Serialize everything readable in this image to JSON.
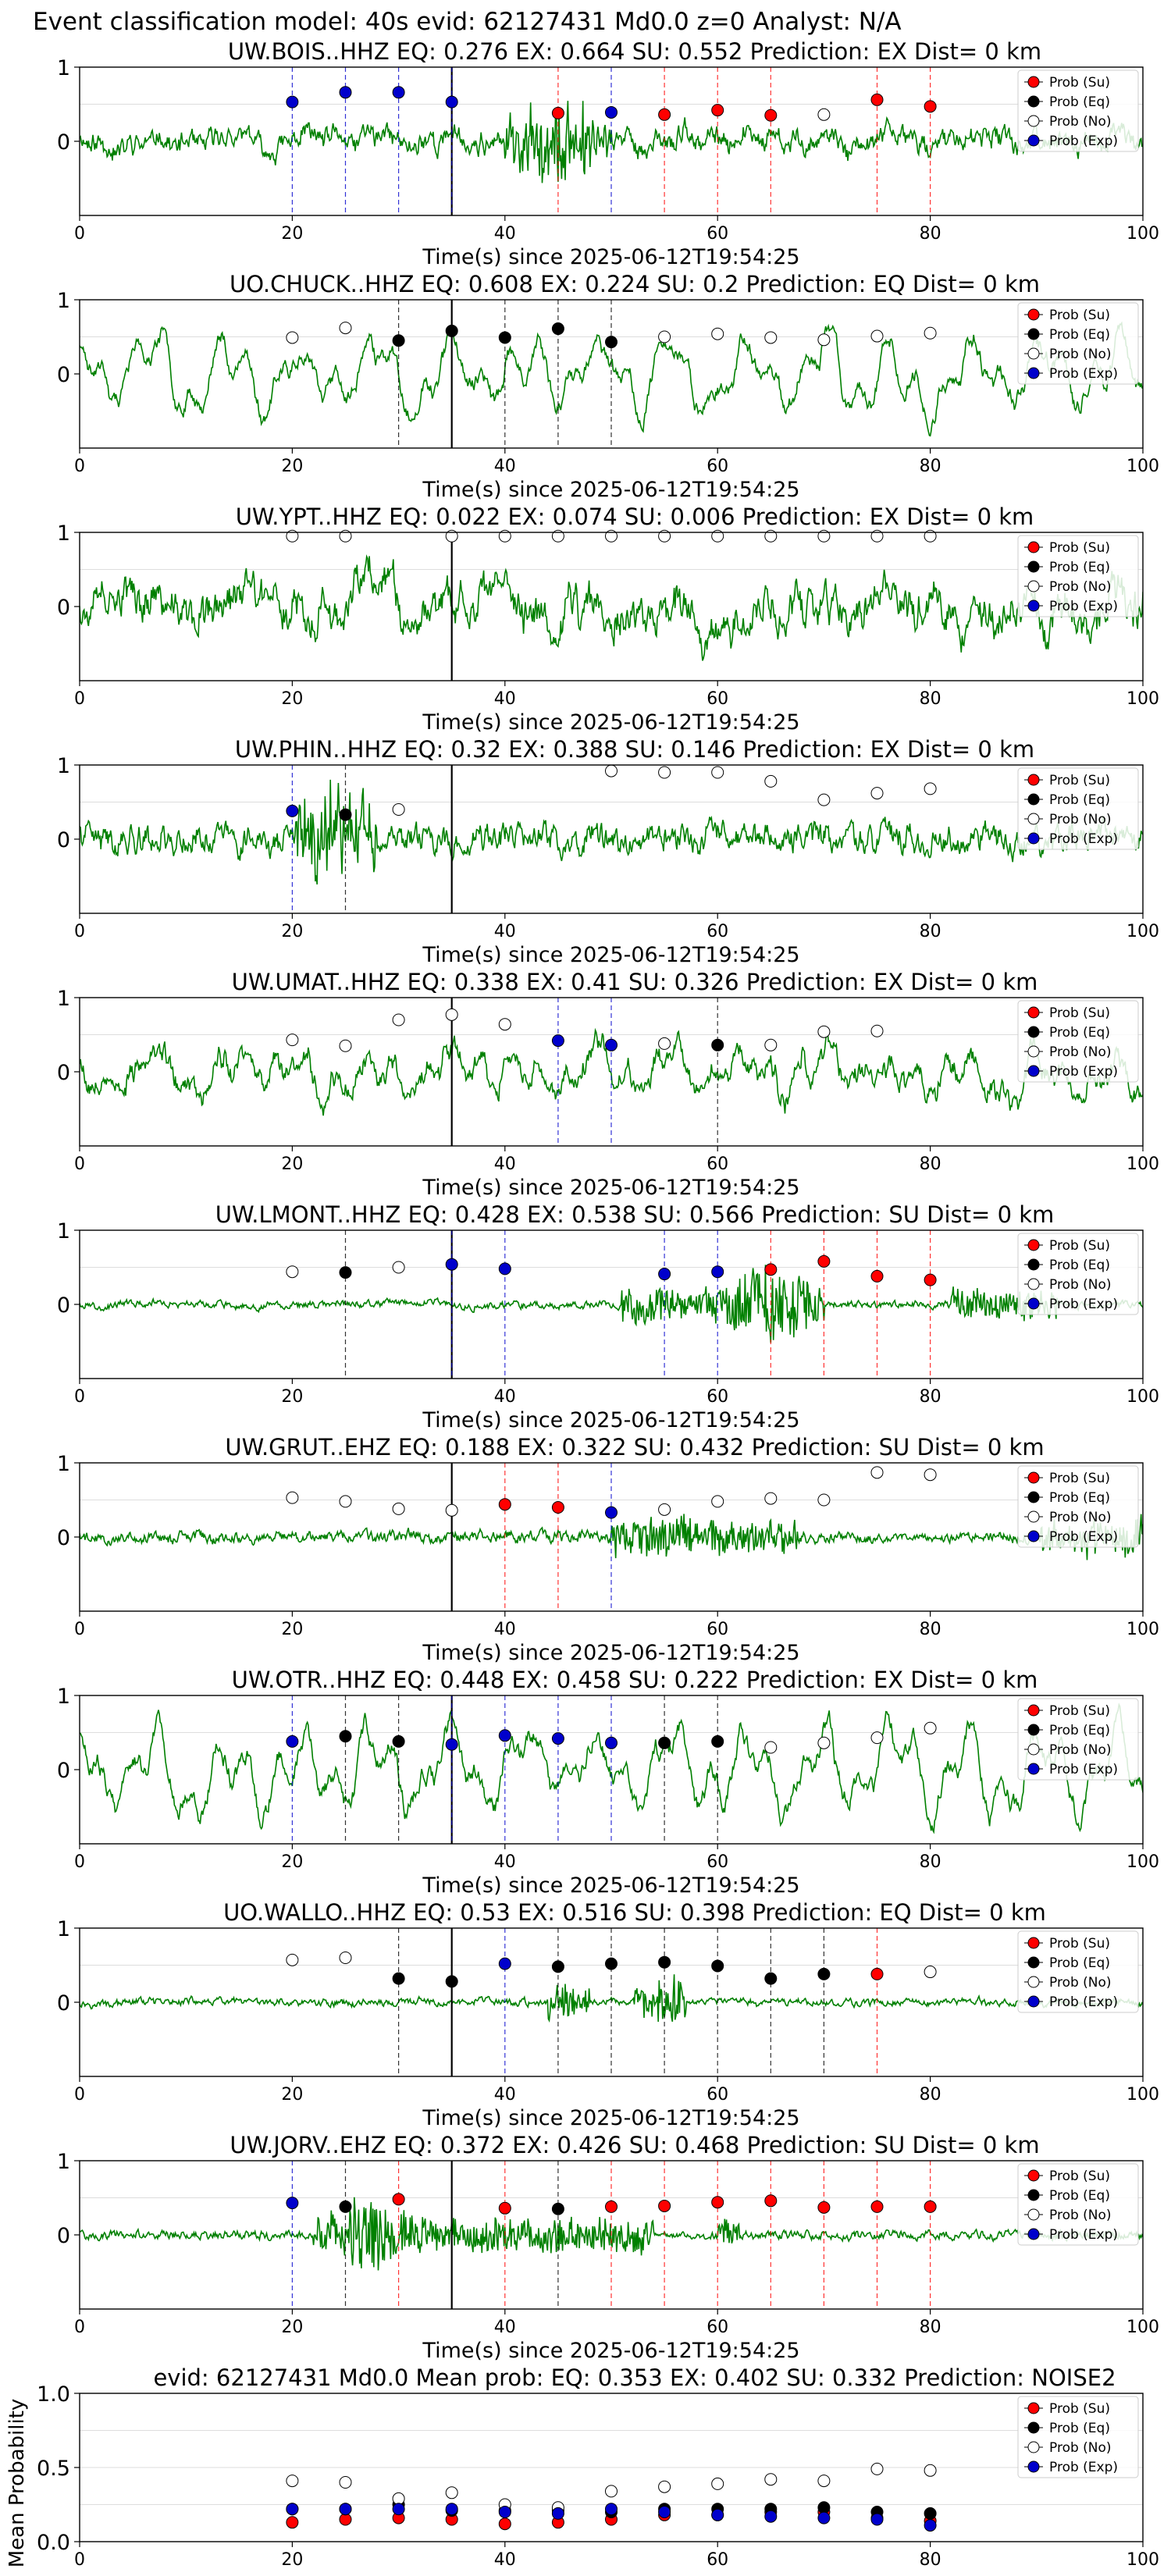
{
  "figure_title": "Event classification model: 40s evid: 62127431 Md0.0 z=0 Analyst: N/A",
  "x_axis_label": "Time(s) since 2025-06-12T19:54:25",
  "legend_labels": [
    "Prob (Su)",
    "Prob (Eq)",
    "Prob (No)",
    "Prob (Exp)"
  ],
  "colors": {
    "su": "#ff0000",
    "eq": "#000000",
    "no": "#ffffff",
    "exp": "#0000cc",
    "waveform": "#008000",
    "su_line": "#ff0000",
    "eq_line": "#000000",
    "exp_line": "#0000cc"
  },
  "chart_data": [
    {
      "type": "line",
      "title": "UW.BOIS..HHZ   EQ: 0.276  EX: 0.664  SU: 0.552   Prediction: EX    Dist= 0 km",
      "xlabel": "Time(s) since 2025-06-12T19:54:25",
      "xlim": [
        0,
        100
      ],
      "ylim": [
        -1,
        1
      ],
      "yticks": [
        0,
        1
      ],
      "xticks": [
        0,
        20,
        40,
        60,
        80,
        100
      ],
      "t_origin": 35,
      "series": [
        {
          "name": "Prob (Su)",
          "x": [
            45,
            55,
            60,
            65,
            75,
            80
          ],
          "values": [
            0.38,
            0.36,
            0.42,
            0.35,
            0.56,
            0.47
          ]
        },
        {
          "name": "Prob (Eq)",
          "x": [],
          "values": []
        },
        {
          "name": "Prob (No)",
          "x": [
            70
          ],
          "values": [
            0.36
          ]
        },
        {
          "name": "Prob (Exp)",
          "x": [
            20,
            25,
            30,
            35,
            50
          ],
          "values": [
            0.53,
            0.66,
            0.66,
            0.53,
            0.39
          ]
        }
      ],
      "waveform": {
        "seed": 11,
        "amp": 0.22,
        "noise": 0.35,
        "lowfreq": 0.5,
        "bursts": [
          [
            40,
            50,
            2.4
          ]
        ]
      }
    },
    {
      "type": "line",
      "title": "UO.CHUCK..HHZ   EQ: 0.608  EX: 0.224  SU: 0.2   Prediction: EQ    Dist= 0 km",
      "xlabel": "Time(s) since 2025-06-12T19:54:25",
      "xlim": [
        0,
        100
      ],
      "ylim": [
        -1,
        1
      ],
      "yticks": [
        0,
        1
      ],
      "xticks": [
        0,
        20,
        40,
        60,
        80,
        100
      ],
      "t_origin": 35,
      "series": [
        {
          "name": "Prob (Su)",
          "x": [],
          "values": []
        },
        {
          "name": "Prob (Eq)",
          "x": [
            30,
            35,
            40,
            45,
            50
          ],
          "values": [
            0.45,
            0.58,
            0.49,
            0.61,
            0.43
          ]
        },
        {
          "name": "Prob (No)",
          "x": [
            20,
            25,
            55,
            60,
            65,
            70,
            75,
            80
          ],
          "values": [
            0.49,
            0.62,
            0.5,
            0.54,
            0.49,
            0.46,
            0.51,
            0.55
          ]
        },
        {
          "name": "Prob (Exp)",
          "x": [],
          "values": []
        }
      ],
      "waveform": {
        "seed": 23,
        "amp": 0.5,
        "noise": 0.08,
        "lowfreq": 1.0,
        "bursts": []
      }
    },
    {
      "type": "line",
      "title": "UW.YPT..HHZ   EQ: 0.022  EX: 0.074  SU: 0.006   Prediction: EX    Dist= 0 km",
      "xlabel": "Time(s) since 2025-06-12T19:54:25",
      "xlim": [
        0,
        100
      ],
      "ylim": [
        -1,
        1
      ],
      "yticks": [
        0,
        1
      ],
      "xticks": [
        0,
        20,
        40,
        60,
        80,
        100
      ],
      "t_origin": 35,
      "series": [
        {
          "name": "Prob (Su)",
          "x": [],
          "values": []
        },
        {
          "name": "Prob (Eq)",
          "x": [],
          "values": []
        },
        {
          "name": "Prob (No)",
          "x": [
            20,
            25,
            35,
            40,
            45,
            50,
            55,
            60,
            65,
            70,
            75,
            80
          ],
          "values": [
            0.95,
            0.95,
            0.95,
            0.95,
            0.95,
            0.95,
            0.95,
            0.95,
            0.95,
            0.95,
            0.95,
            0.95
          ]
        },
        {
          "name": "Prob (Exp)",
          "x": [],
          "values": []
        }
      ],
      "waveform": {
        "seed": 37,
        "amp": 0.6,
        "noise": 0.55,
        "lowfreq": 0.2,
        "bursts": []
      }
    },
    {
      "type": "line",
      "title": "UW.PHIN..HHZ   EQ: 0.32  EX: 0.388  SU: 0.146   Prediction: EX    Dist= 0 km",
      "xlabel": "Time(s) since 2025-06-12T19:54:25",
      "xlim": [
        0,
        100
      ],
      "ylim": [
        -1,
        1
      ],
      "yticks": [
        0,
        1
      ],
      "xticks": [
        0,
        20,
        40,
        60,
        80,
        100
      ],
      "t_origin": 35,
      "series": [
        {
          "name": "Prob (Su)",
          "x": [],
          "values": []
        },
        {
          "name": "Prob (Eq)",
          "x": [
            25
          ],
          "values": [
            0.33
          ]
        },
        {
          "name": "Prob (No)",
          "x": [
            30,
            50,
            55,
            60,
            65,
            70,
            75,
            80
          ],
          "values": [
            0.4,
            0.92,
            0.9,
            0.9,
            0.78,
            0.53,
            0.62,
            0.68
          ]
        },
        {
          "name": "Prob (Exp)",
          "x": [
            20
          ],
          "values": [
            0.38
          ]
        }
      ],
      "waveform": {
        "seed": 41,
        "amp": 0.2,
        "noise": 0.45,
        "lowfreq": 0.2,
        "bursts": [
          [
            20,
            28,
            2.6
          ]
        ]
      }
    },
    {
      "type": "line",
      "title": "UW.UMAT..HHZ   EQ: 0.338  EX: 0.41  SU: 0.326   Prediction: EX    Dist= 0 km",
      "xlabel": "Time(s) since 2025-06-12T19:54:25",
      "xlim": [
        0,
        100
      ],
      "ylim": [
        -1,
        1
      ],
      "yticks": [
        0,
        1
      ],
      "xticks": [
        0,
        20,
        40,
        60,
        80,
        100
      ],
      "t_origin": 35,
      "series": [
        {
          "name": "Prob (Su)",
          "x": [],
          "values": []
        },
        {
          "name": "Prob (Eq)",
          "x": [
            60
          ],
          "values": [
            0.36
          ]
        },
        {
          "name": "Prob (No)",
          "x": [
            20,
            25,
            30,
            35,
            40,
            55,
            65,
            70,
            75
          ],
          "values": [
            0.43,
            0.35,
            0.7,
            0.77,
            0.64,
            0.38,
            0.36,
            0.54,
            0.55
          ]
        },
        {
          "name": "Prob (Exp)",
          "x": [
            45,
            50
          ],
          "values": [
            0.42,
            0.36
          ]
        }
      ],
      "waveform": {
        "seed": 53,
        "amp": 0.45,
        "noise": 0.3,
        "lowfreq": 0.7,
        "bursts": []
      }
    },
    {
      "type": "line",
      "title": "UW.LMONT..HHZ   EQ: 0.428  EX: 0.538  SU: 0.566   Prediction: SU    Dist= 0 km",
      "xlabel": "Time(s) since 2025-06-12T19:54:25",
      "xlim": [
        0,
        100
      ],
      "ylim": [
        -1,
        1
      ],
      "yticks": [
        0,
        1
      ],
      "xticks": [
        0,
        20,
        40,
        60,
        80,
        100
      ],
      "t_origin": 35,
      "series": [
        {
          "name": "Prob (Su)",
          "x": [
            65,
            70,
            75,
            80
          ],
          "values": [
            0.47,
            0.58,
            0.38,
            0.33
          ]
        },
        {
          "name": "Prob (Eq)",
          "x": [
            25
          ],
          "values": [
            0.43
          ]
        },
        {
          "name": "Prob (No)",
          "x": [
            20,
            30
          ],
          "values": [
            0.44,
            0.5
          ]
        },
        {
          "name": "Prob (Exp)",
          "x": [
            35,
            40,
            55,
            60
          ],
          "values": [
            0.54,
            0.48,
            0.41,
            0.44
          ]
        }
      ],
      "waveform": {
        "seed": 67,
        "amp": 0.05,
        "noise": 0.12,
        "lowfreq": 0.2,
        "bursts": [
          [
            51,
            60,
            0.9
          ],
          [
            60,
            70,
            2.8
          ],
          [
            82,
            92,
            0.7
          ]
        ]
      }
    },
    {
      "type": "line",
      "title": "UW.GRUT..EHZ   EQ: 0.188  EX: 0.322  SU: 0.432   Prediction: SU    Dist= 0 km",
      "xlabel": "Time(s) since 2025-06-12T19:54:25",
      "xlim": [
        0,
        100
      ],
      "ylim": [
        -1,
        1
      ],
      "yticks": [
        0,
        1
      ],
      "xticks": [
        0,
        20,
        40,
        60,
        80,
        100
      ],
      "t_origin": 35,
      "series": [
        {
          "name": "Prob (Su)",
          "x": [
            40,
            45
          ],
          "values": [
            0.44,
            0.4
          ]
        },
        {
          "name": "Prob (Eq)",
          "x": [],
          "values": []
        },
        {
          "name": "Prob (No)",
          "x": [
            20,
            25,
            30,
            35,
            55,
            60,
            65,
            70,
            75,
            80
          ],
          "values": [
            0.53,
            0.48,
            0.38,
            0.36,
            0.37,
            0.48,
            0.52,
            0.5,
            0.87,
            0.84
          ]
        },
        {
          "name": "Prob (Exp)",
          "x": [
            50
          ],
          "values": [
            0.33
          ]
        }
      ],
      "waveform": {
        "seed": 79,
        "amp": 0.06,
        "noise": 0.2,
        "lowfreq": 0.1,
        "bursts": [
          [
            50,
            58,
            1.2
          ],
          [
            58,
            100,
            0.35
          ]
        ]
      }
    },
    {
      "type": "line",
      "title": "UW.OTR..HHZ   EQ: 0.448  EX: 0.458  SU: 0.222   Prediction: EX    Dist= 0 km",
      "xlabel": "Time(s) since 2025-06-12T19:54:25",
      "xlim": [
        0,
        100
      ],
      "ylim": [
        -1,
        1
      ],
      "yticks": [
        0,
        1
      ],
      "xticks": [
        0,
        20,
        40,
        60,
        80,
        100
      ],
      "t_origin": 35,
      "series": [
        {
          "name": "Prob (Su)",
          "x": [],
          "values": []
        },
        {
          "name": "Prob (Eq)",
          "x": [
            25,
            30,
            55,
            60
          ],
          "values": [
            0.45,
            0.38,
            0.36,
            0.38
          ]
        },
        {
          "name": "Prob (No)",
          "x": [
            65,
            70,
            75,
            80
          ],
          "values": [
            0.3,
            0.36,
            0.43,
            0.56
          ]
        },
        {
          "name": "Prob (Exp)",
          "x": [
            20,
            35,
            40,
            45,
            50
          ],
          "values": [
            0.38,
            0.34,
            0.46,
            0.42,
            0.36
          ]
        }
      ],
      "waveform": {
        "seed": 83,
        "amp": 0.6,
        "noise": 0.03,
        "lowfreq": 1.0,
        "bursts": []
      }
    },
    {
      "type": "line",
      "title": "UO.WALLO..HHZ   EQ: 0.53  EX: 0.516  SU: 0.398   Prediction: EQ    Dist= 0 km",
      "xlabel": "Time(s) since 2025-06-12T19:54:25",
      "xlim": [
        0,
        100
      ],
      "ylim": [
        -1,
        1
      ],
      "yticks": [
        0,
        1
      ],
      "xticks": [
        0,
        20,
        40,
        60,
        80,
        100
      ],
      "t_origin": 35,
      "series": [
        {
          "name": "Prob (Su)",
          "x": [
            75
          ],
          "values": [
            0.38
          ]
        },
        {
          "name": "Prob (Eq)",
          "x": [
            30,
            35,
            45,
            50,
            55,
            60,
            65,
            70
          ],
          "values": [
            0.32,
            0.28,
            0.48,
            0.52,
            0.54,
            0.49,
            0.32,
            0.38
          ]
        },
        {
          "name": "Prob (No)",
          "x": [
            20,
            25,
            80
          ],
          "values": [
            0.57,
            0.6,
            0.41
          ]
        },
        {
          "name": "Prob (Exp)",
          "x": [
            40
          ],
          "values": [
            0.52
          ]
        }
      ],
      "waveform": {
        "seed": 97,
        "amp": 0.05,
        "noise": 0.12,
        "lowfreq": 0.1,
        "bursts": [
          [
            44,
            56,
            0.55
          ],
          [
            53,
            57,
            1.9
          ]
        ]
      }
    },
    {
      "type": "line",
      "title": "UW.JORV..EHZ   EQ: 0.372  EX: 0.426  SU: 0.468   Prediction: SU    Dist= 0 km",
      "xlabel": "Time(s) since 2025-06-12T19:54:25",
      "xlim": [
        0,
        100
      ],
      "ylim": [
        -1,
        1
      ],
      "yticks": [
        0,
        1
      ],
      "xticks": [
        0,
        20,
        40,
        60,
        80,
        100
      ],
      "t_origin": 35,
      "series": [
        {
          "name": "Prob (Su)",
          "x": [
            30,
            40,
            50,
            55,
            60,
            65,
            70,
            75,
            80
          ],
          "values": [
            0.48,
            0.36,
            0.38,
            0.39,
            0.44,
            0.46,
            0.37,
            0.38,
            0.38
          ]
        },
        {
          "name": "Prob (Eq)",
          "x": [
            25,
            45
          ],
          "values": [
            0.38,
            0.35
          ]
        },
        {
          "name": "Prob (No)",
          "x": [],
          "values": []
        },
        {
          "name": "Prob (Exp)",
          "x": [
            20
          ],
          "values": [
            0.43
          ]
        }
      ],
      "waveform": {
        "seed": 101,
        "amp": 0.04,
        "noise": 0.15,
        "lowfreq": 0.1,
        "bursts": [
          [
            22,
            32,
            2.4
          ],
          [
            32,
            52,
            0.8
          ],
          [
            52,
            62,
            0.25
          ]
        ]
      }
    },
    {
      "type": "scatter",
      "title": "evid: 62127431  Md0.0   Mean prob:   EQ: 0.353  EX: 0.402  SU: 0.332   Prediction: NOISE2",
      "ylabel": "Mean Probability",
      "xlim": [
        0,
        100
      ],
      "ylim": [
        0,
        1
      ],
      "yticks": [
        0.0,
        0.5,
        1.0
      ],
      "xticks": [
        0,
        20,
        40,
        60,
        80,
        100
      ],
      "series": [
        {
          "name": "Prob (Su)",
          "x": [
            20,
            25,
            30,
            35,
            40,
            45,
            50,
            55,
            60,
            65,
            70,
            75,
            80
          ],
          "values": [
            0.13,
            0.15,
            0.16,
            0.15,
            0.12,
            0.13,
            0.15,
            0.18,
            0.18,
            0.2,
            0.2,
            0.16,
            0.14
          ]
        },
        {
          "name": "Prob (Eq)",
          "x": [
            20,
            25,
            30,
            35,
            40,
            45,
            50,
            55,
            60,
            65,
            70,
            75,
            80
          ],
          "values": [
            0.22,
            0.22,
            0.25,
            0.21,
            0.21,
            0.21,
            0.2,
            0.22,
            0.22,
            0.22,
            0.23,
            0.2,
            0.19
          ]
        },
        {
          "name": "Prob (No)",
          "x": [
            20,
            25,
            30,
            35,
            40,
            45,
            50,
            55,
            60,
            65,
            70,
            75,
            80
          ],
          "values": [
            0.41,
            0.4,
            0.29,
            0.33,
            0.25,
            0.23,
            0.34,
            0.37,
            0.39,
            0.42,
            0.41,
            0.49,
            0.48
          ]
        },
        {
          "name": "Prob (Exp)",
          "x": [
            20,
            25,
            30,
            35,
            40,
            45,
            50,
            55,
            60,
            65,
            70,
            75,
            80
          ],
          "values": [
            0.22,
            0.22,
            0.22,
            0.22,
            0.2,
            0.19,
            0.22,
            0.2,
            0.18,
            0.17,
            0.16,
            0.15,
            0.11
          ]
        }
      ]
    }
  ]
}
